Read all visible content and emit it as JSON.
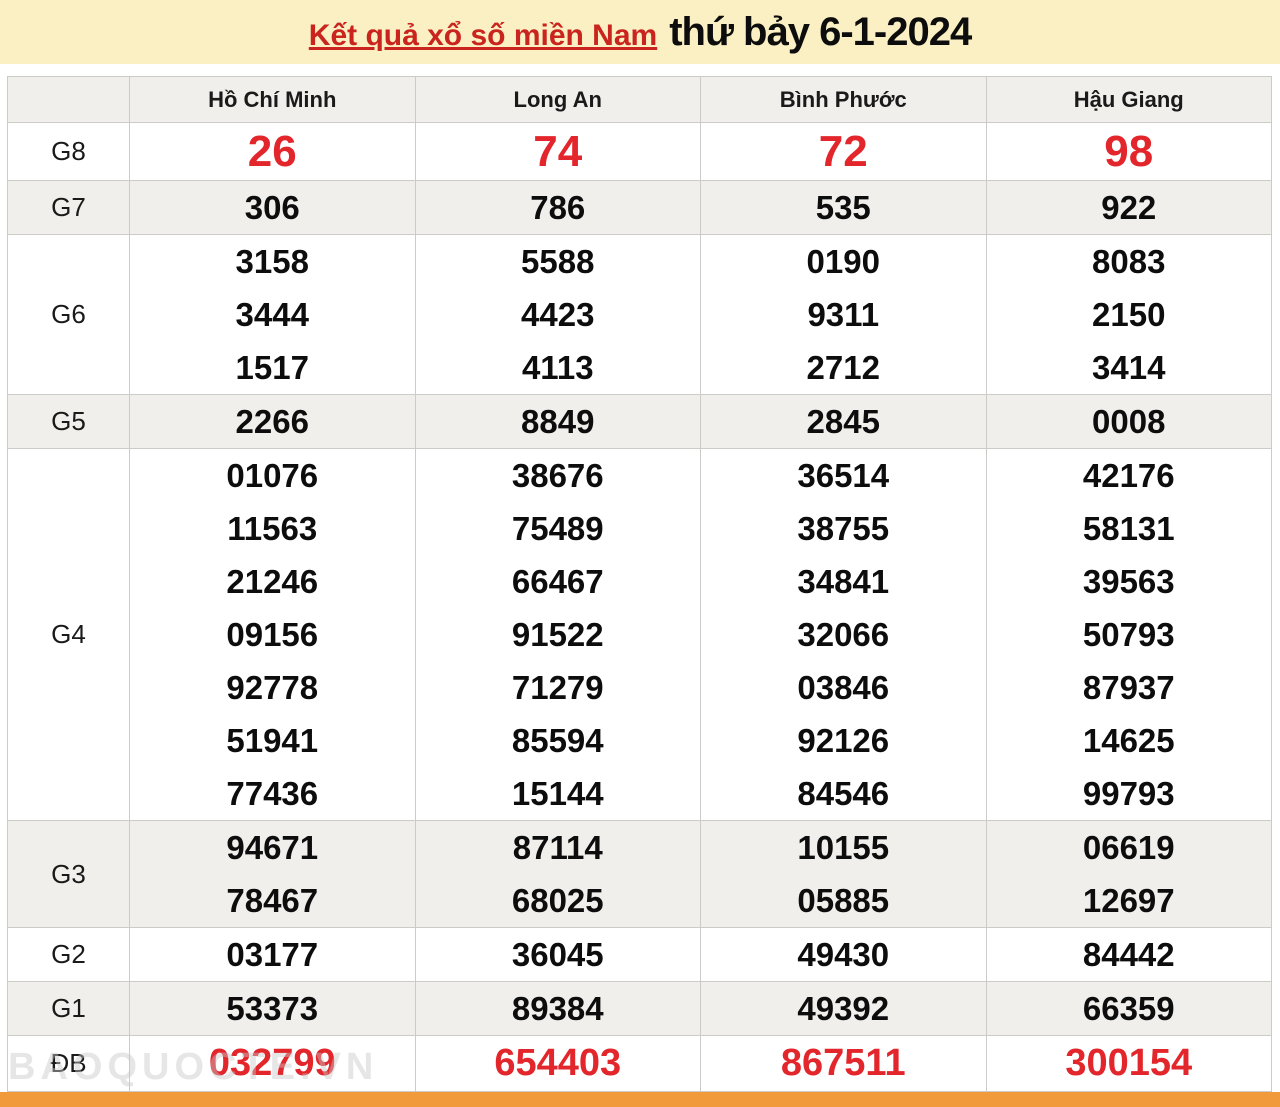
{
  "title": {
    "link_text": "Kết quả xổ số miền Nam",
    "rest_text": "thứ bảy 6-1-2024"
  },
  "table": {
    "corner_label": "",
    "provinces": [
      "Hồ Chí Minh",
      "Long An",
      "Bình Phước",
      "Hậu Giang"
    ],
    "rows": [
      {
        "label": "G8",
        "style": "red-large",
        "values": [
          [
            "26"
          ],
          [
            "74"
          ],
          [
            "72"
          ],
          [
            "98"
          ]
        ]
      },
      {
        "label": "G7",
        "style": "normal",
        "values": [
          [
            "306"
          ],
          [
            "786"
          ],
          [
            "535"
          ],
          [
            "922"
          ]
        ]
      },
      {
        "label": "G6",
        "style": "normal",
        "values": [
          [
            "3158",
            "3444",
            "1517"
          ],
          [
            "5588",
            "4423",
            "4113"
          ],
          [
            "0190",
            "9311",
            "2712"
          ],
          [
            "8083",
            "2150",
            "3414"
          ]
        ]
      },
      {
        "label": "G5",
        "style": "normal",
        "values": [
          [
            "2266"
          ],
          [
            "8849"
          ],
          [
            "2845"
          ],
          [
            "0008"
          ]
        ]
      },
      {
        "label": "G4",
        "style": "normal",
        "values": [
          [
            "01076",
            "11563",
            "21246",
            "09156",
            "92778",
            "51941",
            "77436"
          ],
          [
            "38676",
            "75489",
            "66467",
            "91522",
            "71279",
            "85594",
            "15144"
          ],
          [
            "36514",
            "38755",
            "34841",
            "32066",
            "03846",
            "92126",
            "84546"
          ],
          [
            "42176",
            "58131",
            "39563",
            "50793",
            "87937",
            "14625",
            "99793"
          ]
        ]
      },
      {
        "label": "G3",
        "style": "normal",
        "values": [
          [
            "94671",
            "78467"
          ],
          [
            "87114",
            "68025"
          ],
          [
            "10155",
            "05885"
          ],
          [
            "06619",
            "12697"
          ]
        ]
      },
      {
        "label": "G2",
        "style": "normal",
        "values": [
          [
            "03177"
          ],
          [
            "36045"
          ],
          [
            "49430"
          ],
          [
            "84442"
          ]
        ]
      },
      {
        "label": "G1",
        "style": "normal",
        "values": [
          [
            "53373"
          ],
          [
            "89384"
          ],
          [
            "49392"
          ],
          [
            "66359"
          ]
        ]
      },
      {
        "label": "ĐB",
        "style": "red-special",
        "values": [
          [
            "032799"
          ],
          [
            "654403"
          ],
          [
            "867511"
          ],
          [
            "300154"
          ]
        ]
      }
    ]
  },
  "watermark": "BAOQUOCTE.VN",
  "colors": {
    "banner_bg": "#FAF0C3",
    "title_red": "#C9241E",
    "number_red": "#E2262B",
    "row_alt_bg": "#F0EFEB",
    "border": "#CCCBC8",
    "orange_bar": "#F19A3B"
  }
}
